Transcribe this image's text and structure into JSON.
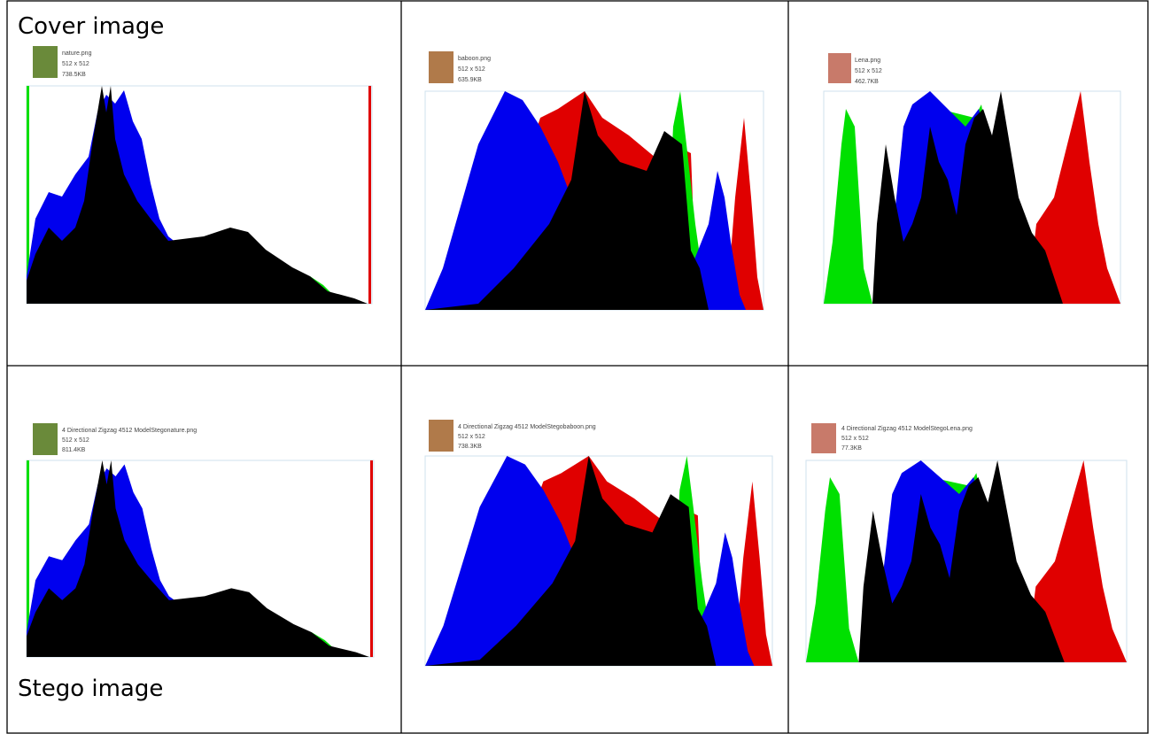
{
  "rows": [
    {
      "label": "Cover image",
      "cells": [
        {
          "file": "nature.png",
          "dims": "512 x 512",
          "size": "738.5KB"
        },
        {
          "file": "baboon.png",
          "dims": "512 x 512",
          "size": "635.9KB"
        },
        {
          "file": "Lena.png",
          "dims": "512 x 512",
          "size": "462.7KB"
        }
      ]
    },
    {
      "label": "Stego image",
      "cells": [
        {
          "file": "4 Directional Zigzag 4512 ModelStegonature.png",
          "dims": "512 x 512",
          "size": "811.4KB"
        },
        {
          "file": "4 Directional Zigzag 4512 ModelStegobaboon.png",
          "dims": "512 x 512",
          "size": "738.3KB"
        },
        {
          "file": "4 Directional Zigzag 4512 ModelStegoLena.png",
          "dims": "512 x 512",
          "size": "77.3KB"
        }
      ]
    }
  ]
}
